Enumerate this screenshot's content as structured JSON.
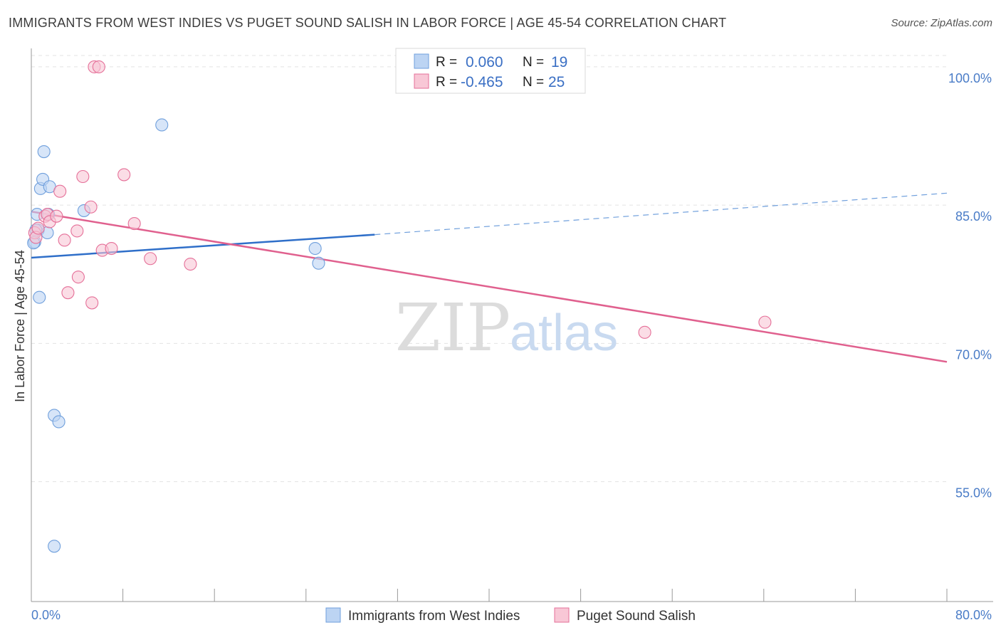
{
  "header": {
    "title": "IMMIGRANTS FROM WEST INDIES VS PUGET SOUND SALISH IN LABOR FORCE | AGE 45-54 CORRELATION CHART",
    "source": "Source: ZipAtlas.com"
  },
  "watermark": {
    "zip": "ZIP",
    "atlas": "atlas"
  },
  "chart_data": {
    "type": "scatter",
    "ylabel": "In Labor Force | Age 45-54",
    "xlim": [
      0,
      80
    ],
    "ylim": [
      42,
      102
    ],
    "x_tick_labels": [
      "0.0%",
      "80.0%"
    ],
    "y_ticks": [
      55,
      70,
      85,
      100
    ],
    "y_tick_labels": [
      "55.0%",
      "70.0%",
      "85.0%",
      "100.0%"
    ],
    "grid": true,
    "legend_position": "top-center",
    "stats": [
      {
        "r_label": "R =",
        "r_value": "0.060",
        "n_label": "N =",
        "n_value": "19"
      },
      {
        "r_label": "R =",
        "r_value": "-0.465",
        "n_label": "N =",
        "n_value": "25"
      }
    ],
    "series": [
      {
        "name": "Immigrants from West Indies",
        "color": "#6f9fdc",
        "fill": "#bcd4f3",
        "trend": {
          "x0": 0,
          "y0": 79.3,
          "x1": 30,
          "y1": 81.8,
          "dash_to_x": 80,
          "dash_to_y": 86.3
        },
        "points": [
          [
            0.3,
            81.0
          ],
          [
            0.5,
            84.0
          ],
          [
            0.6,
            82.3
          ],
          [
            0.7,
            75.0
          ],
          [
            0.8,
            86.8
          ],
          [
            1.0,
            87.8
          ],
          [
            1.1,
            90.8
          ],
          [
            1.4,
            82.0
          ],
          [
            1.5,
            84.0
          ],
          [
            1.6,
            87.0
          ],
          [
            2.0,
            62.2
          ],
          [
            2.4,
            61.5
          ],
          [
            2.0,
            48.0
          ],
          [
            4.6,
            84.4
          ],
          [
            11.4,
            93.7
          ],
          [
            24.8,
            80.3
          ],
          [
            25.1,
            78.7
          ],
          [
            0.4,
            82.3
          ],
          [
            0.2,
            80.9
          ]
        ]
      },
      {
        "name": "Puget Sound Salish",
        "color": "#e56f98",
        "fill": "#f8c7d6",
        "trend": {
          "x0": 0,
          "y0": 84.3,
          "x1": 80,
          "y1": 68.0
        },
        "points": [
          [
            0.3,
            82.0
          ],
          [
            0.4,
            81.5
          ],
          [
            0.6,
            82.5
          ],
          [
            1.2,
            83.8
          ],
          [
            1.4,
            84.0
          ],
          [
            1.6,
            83.2
          ],
          [
            2.2,
            83.8
          ],
          [
            2.5,
            86.5
          ],
          [
            2.9,
            81.2
          ],
          [
            3.2,
            75.5
          ],
          [
            4.0,
            82.2
          ],
          [
            4.1,
            77.2
          ],
          [
            4.5,
            88.1
          ],
          [
            5.2,
            84.8
          ],
          [
            5.3,
            74.4
          ],
          [
            5.5,
            100.0
          ],
          [
            5.9,
            100.0
          ],
          [
            6.2,
            80.1
          ],
          [
            7.0,
            80.3
          ],
          [
            8.1,
            88.3
          ],
          [
            9.0,
            83.0
          ],
          [
            10.4,
            79.2
          ],
          [
            13.9,
            78.6
          ],
          [
            53.6,
            71.2
          ],
          [
            64.1,
            72.3
          ]
        ]
      }
    ]
  }
}
